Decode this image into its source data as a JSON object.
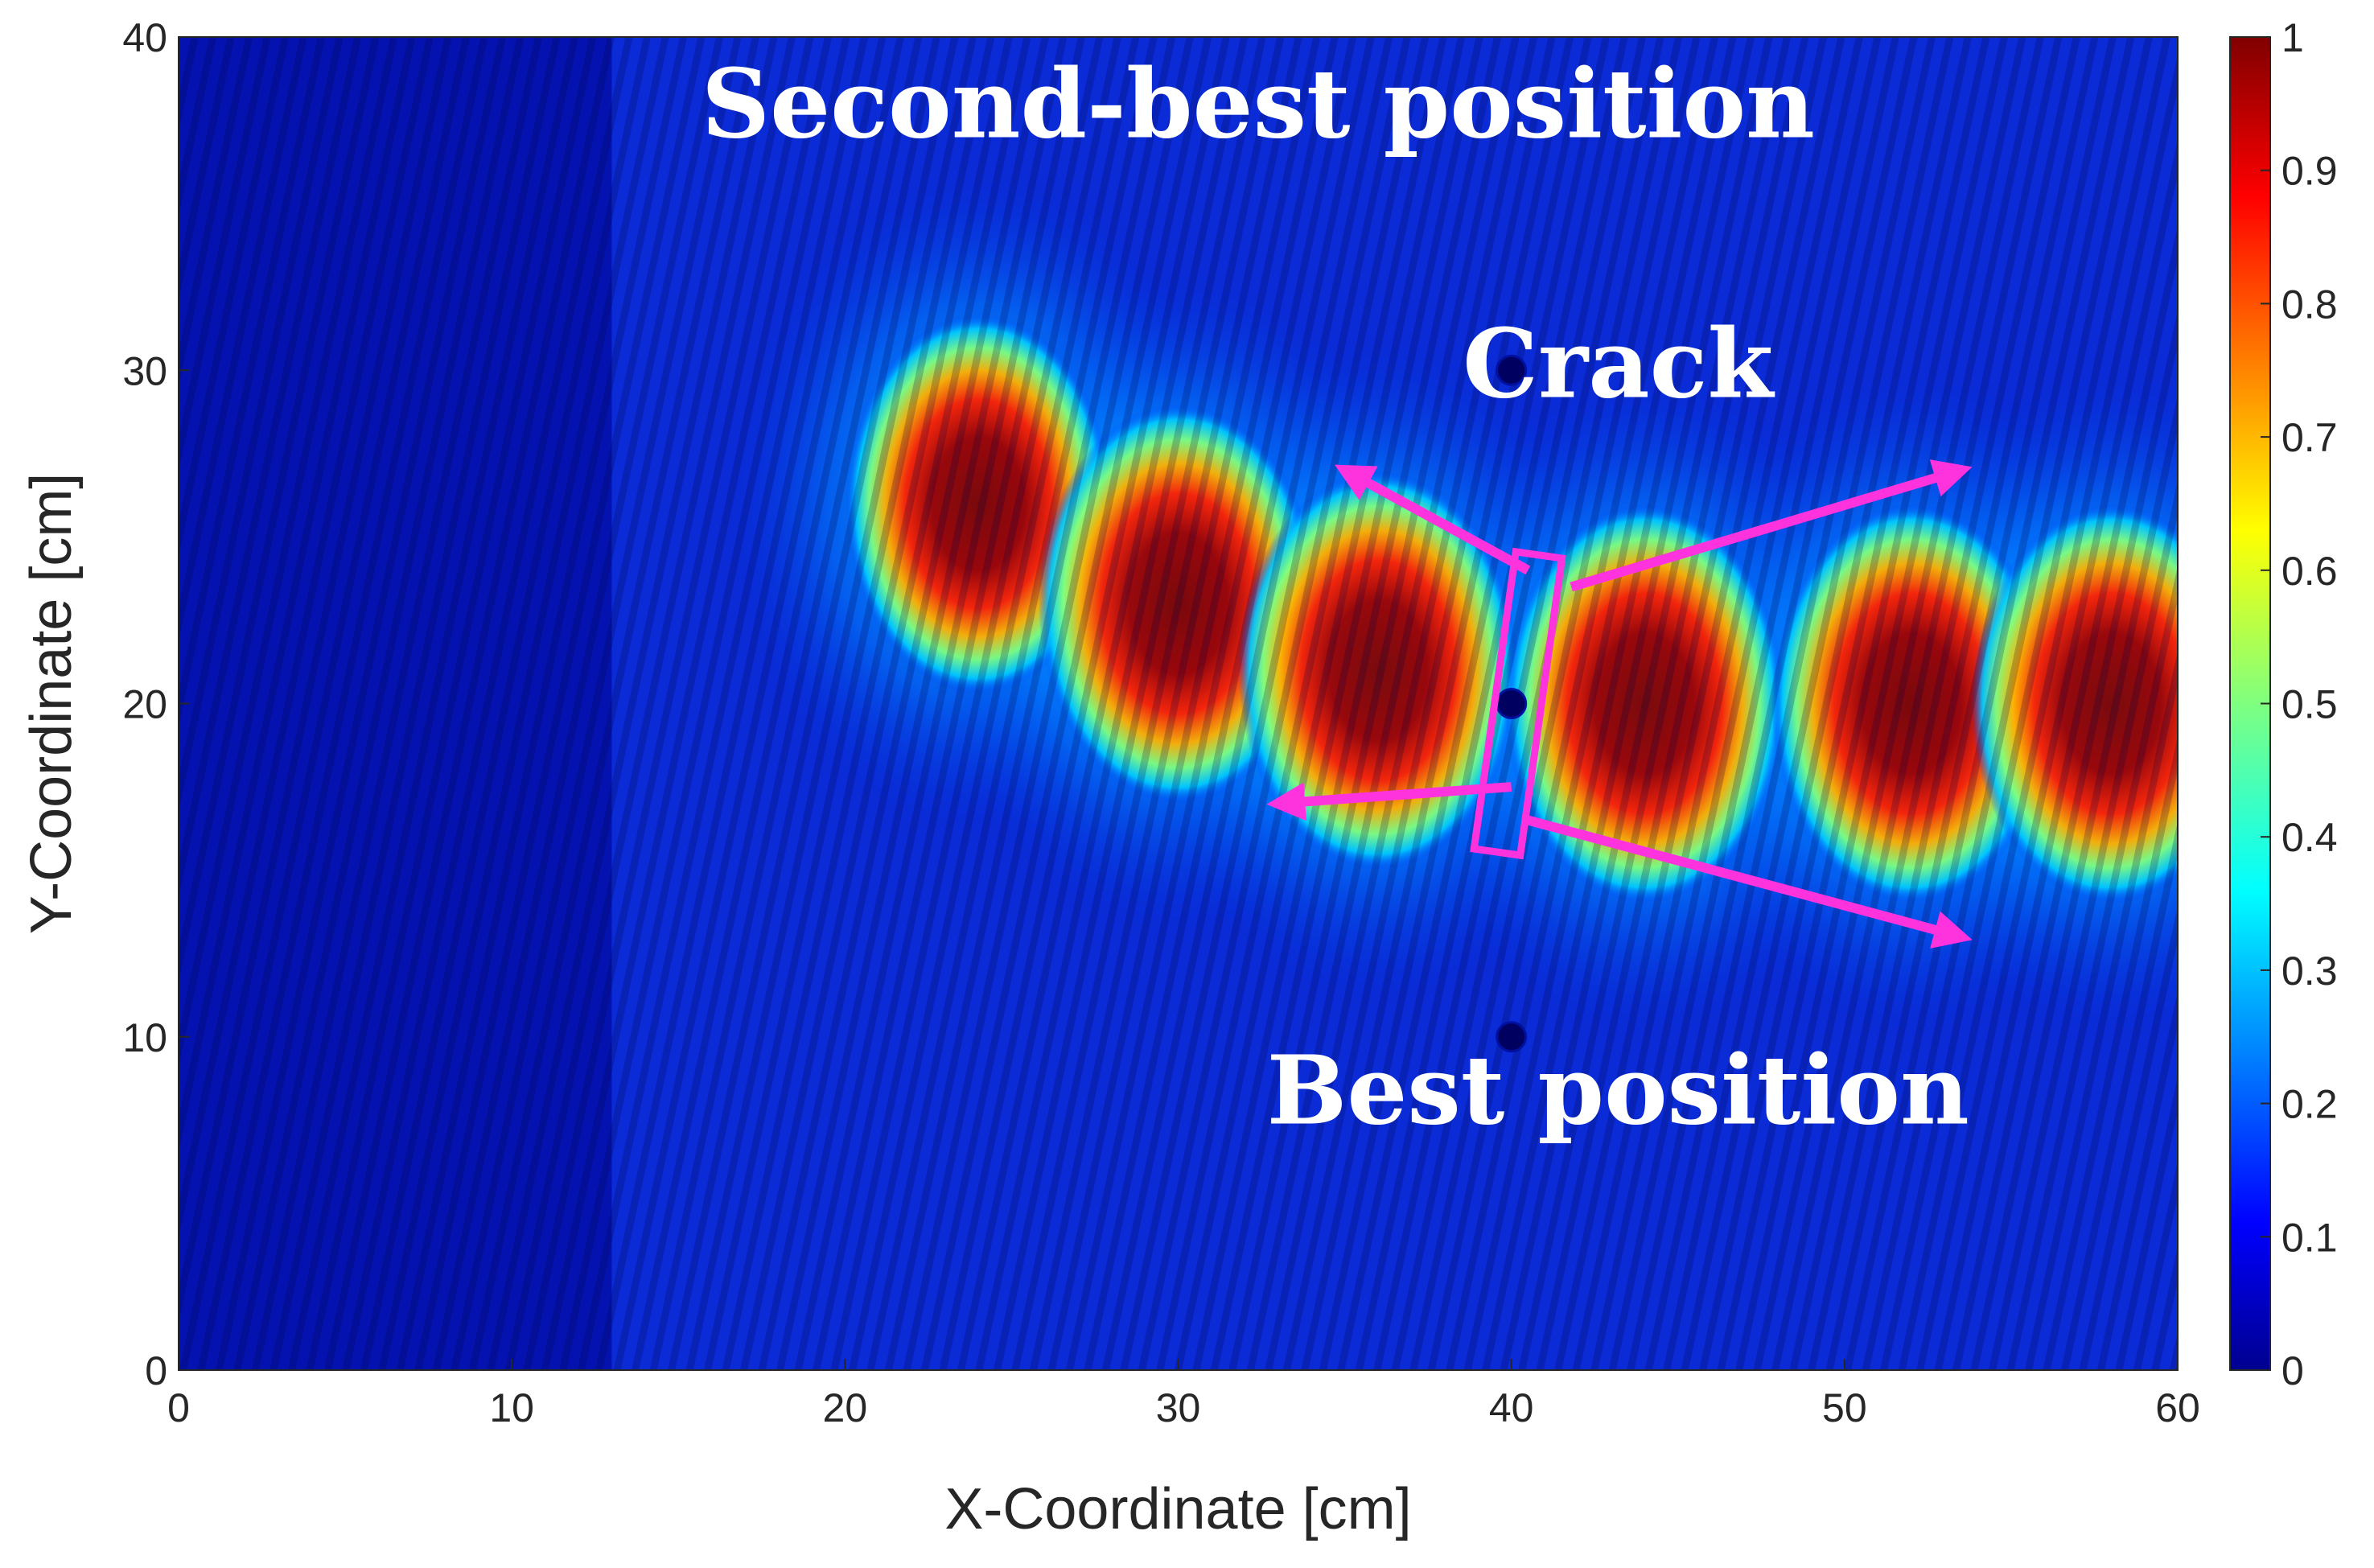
{
  "chart_data": {
    "type": "heatmap",
    "title": "",
    "xlabel": "X-Coordinate [cm]",
    "ylabel": "Y-Coordinate [cm]",
    "xlim": [
      0,
      60
    ],
    "ylim": [
      0,
      40
    ],
    "xticks": [
      "0",
      "10",
      "20",
      "30",
      "40",
      "50",
      "60"
    ],
    "yticks": [
      "0",
      "10",
      "20",
      "30",
      "40"
    ],
    "colorbar": {
      "colormap": "jet",
      "range": [
        0,
        1
      ],
      "ticks": [
        "0",
        "0.1",
        "0.2",
        "0.3",
        "0.4",
        "0.5",
        "0.6",
        "0.7",
        "0.8",
        "0.9",
        "1"
      ]
    },
    "grid": false,
    "hotspots": [
      {
        "x": 24,
        "y": 26,
        "value": 0.95
      },
      {
        "x": 30,
        "y": 23,
        "value": 1.0
      },
      {
        "x": 36,
        "y": 21,
        "value": 1.0
      },
      {
        "x": 44,
        "y": 20,
        "value": 1.0
      },
      {
        "x": 52,
        "y": 20,
        "value": 1.0
      },
      {
        "x": 58,
        "y": 20,
        "value": 1.0
      }
    ],
    "markers": [
      {
        "x": 40,
        "y": 30
      },
      {
        "x": 40,
        "y": 20
      },
      {
        "x": 40,
        "y": 10
      }
    ],
    "crack_region": {
      "x_center": 40.2,
      "y_center": 20,
      "length": 9,
      "angle_deg": 8
    },
    "arrows": [
      {
        "from": [
          40.5,
          24
        ],
        "to": [
          35,
          27
        ]
      },
      {
        "from": [
          41.8,
          23.5
        ],
        "to": [
          53.5,
          27
        ]
      },
      {
        "from": [
          40,
          17.5
        ],
        "to": [
          33,
          17
        ]
      },
      {
        "from": [
          40.5,
          16.5
        ],
        "to": [
          53.5,
          13
        ]
      }
    ],
    "annotations": [
      {
        "text": "Second-best position",
        "x": 32.4,
        "y": 37
      },
      {
        "text": "Crack",
        "x": 43.2,
        "y": 29.2
      },
      {
        "text": "Best position",
        "x": 43.2,
        "y": 7.4
      }
    ],
    "annotation_color": "#ffffff",
    "arrow_color": "#ff33dd"
  }
}
